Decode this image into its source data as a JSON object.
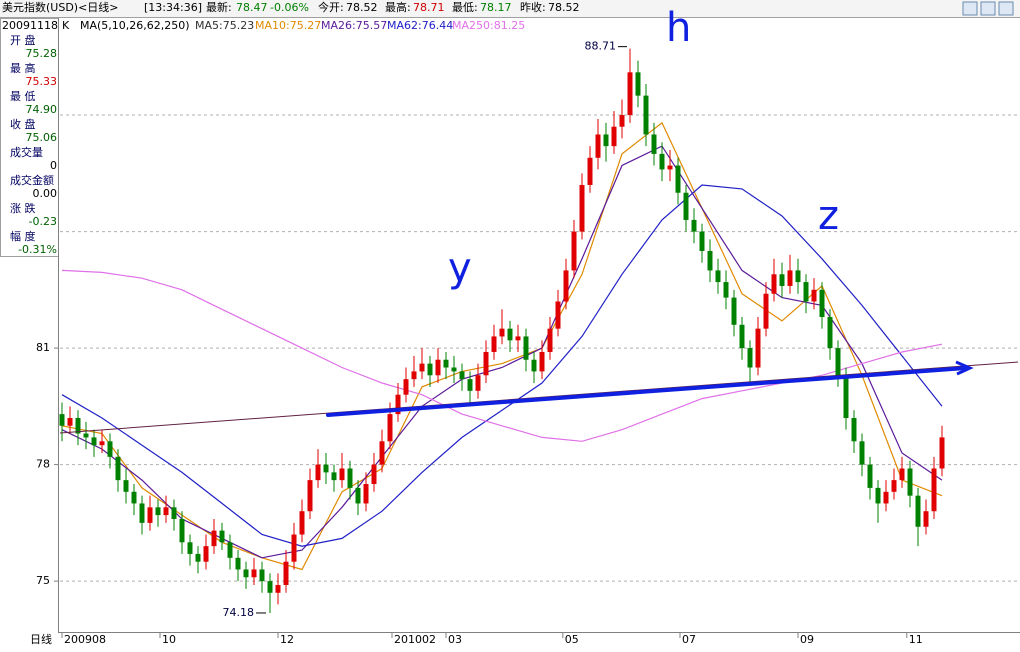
{
  "header": {
    "title": "美元指数(USD)<日线>",
    "time": "[13:34:36]",
    "latest_label": "最新:",
    "latest": "78.47",
    "change": "-0.06%",
    "open_label": "今开:",
    "open": "78.52",
    "high_label": "最高:",
    "high": "78.71",
    "low_label": "最低:",
    "low": "78.17",
    "prev_label": "昨收:",
    "prev": "78.52"
  },
  "info_panel": {
    "date": "20091118",
    "rows": [
      {
        "label": "开 盘",
        "value": "75.28",
        "color": "#006000"
      },
      {
        "label": "最 高",
        "value": "75.33",
        "color": "#d00000"
      },
      {
        "label": "最 低",
        "value": "74.90",
        "color": "#006000"
      },
      {
        "label": "收 盘",
        "value": "75.06",
        "color": "#006000"
      },
      {
        "label": "成交量",
        "value": "0",
        "color": "#000000"
      },
      {
        "label": "成交金额",
        "value": "0.00",
        "color": "#000000"
      },
      {
        "label": "涨 跌",
        "value": "-0.23",
        "color": "#006000"
      },
      {
        "label": "幅 度",
        "value": "-0.31%",
        "color": "#006000"
      }
    ]
  },
  "chart_data": {
    "type": "candlestick",
    "kline_label": "K",
    "ma_label": "MA(5,10,26,62,250)",
    "period_label": "日线",
    "up_color": "#e00000",
    "down_color": "#008000",
    "xlim": [
      -0.25,
      119.5
    ],
    "ylim": [
      73.69,
      89.19
    ],
    "yticks": [
      75,
      78,
      81
    ],
    "ygrid": [
      75,
      78,
      81,
      84,
      87
    ],
    "xticks": [
      {
        "value": 0,
        "label": "200908"
      },
      {
        "value": 12.25,
        "label": "10"
      },
      {
        "value": 27,
        "label": "12"
      },
      {
        "value": 41.25,
        "label": "201002"
      },
      {
        "value": 48,
        "label": "03"
      },
      {
        "value": 62.6,
        "label": "05"
      },
      {
        "value": 77.25,
        "label": "07"
      },
      {
        "value": 92,
        "label": "09"
      },
      {
        "value": 105.6,
        "label": "11"
      }
    ],
    "annotations": {
      "high_label": "88.71",
      "high_index": 71,
      "high_value": 88.71,
      "low_label": "74.18",
      "low_index": 26,
      "low_value": 74.18,
      "mark_y": "y",
      "mark_h": "h",
      "mark_z": "z"
    },
    "candles": [
      [
        79.3,
        79.6,
        78.6,
        79.0
      ],
      [
        79.0,
        79.5,
        78.8,
        79.2
      ],
      [
        79.2,
        79.4,
        78.5,
        78.8
      ],
      [
        78.8,
        79.1,
        78.4,
        78.7
      ],
      [
        78.7,
        78.9,
        78.2,
        78.5
      ],
      [
        78.5,
        78.9,
        78.3,
        78.6
      ],
      [
        78.6,
        78.8,
        77.9,
        78.2
      ],
      [
        78.2,
        78.4,
        77.3,
        77.6
      ],
      [
        77.6,
        77.9,
        77.0,
        77.3
      ],
      [
        77.3,
        77.5,
        76.7,
        77.0
      ],
      [
        77.0,
        77.2,
        76.2,
        76.5
      ],
      [
        76.5,
        77.2,
        76.3,
        76.9
      ],
      [
        76.9,
        77.1,
        76.4,
        76.7
      ],
      [
        76.7,
        77.2,
        76.5,
        76.9
      ],
      [
        76.9,
        77.1,
        76.3,
        76.6
      ],
      [
        76.6,
        76.8,
        75.7,
        76.0
      ],
      [
        76.0,
        76.2,
        75.4,
        75.7
      ],
      [
        75.7,
        75.9,
        75.2,
        75.5
      ],
      [
        75.5,
        76.2,
        75.3,
        75.9
      ],
      [
        75.9,
        76.6,
        75.7,
        76.3
      ],
      [
        76.3,
        76.5,
        75.8,
        76.0
      ],
      [
        76.0,
        76.2,
        75.3,
        75.6
      ],
      [
        75.6,
        75.8,
        75.0,
        75.3
      ],
      [
        75.3,
        75.5,
        74.8,
        75.1
      ],
      [
        75.1,
        75.6,
        74.9,
        75.3
      ],
      [
        75.3,
        75.5,
        74.7,
        75.0
      ],
      [
        75.0,
        75.2,
        74.18,
        74.7
      ],
      [
        74.7,
        75.2,
        74.4,
        74.9
      ],
      [
        74.9,
        75.8,
        74.7,
        75.5
      ],
      [
        75.5,
        76.5,
        75.3,
        76.2
      ],
      [
        76.2,
        77.1,
        76.0,
        76.8
      ],
      [
        76.8,
        77.9,
        76.6,
        77.6
      ],
      [
        77.6,
        78.4,
        77.4,
        78.0
      ],
      [
        78.0,
        78.3,
        77.5,
        77.8
      ],
      [
        77.8,
        78.0,
        77.3,
        77.6
      ],
      [
        77.6,
        78.3,
        77.4,
        77.9
      ],
      [
        77.9,
        78.1,
        77.1,
        77.4
      ],
      [
        77.4,
        77.6,
        76.7,
        77.0
      ],
      [
        77.0,
        77.8,
        76.8,
        77.5
      ],
      [
        77.5,
        78.3,
        77.3,
        78.0
      ],
      [
        78.0,
        78.9,
        77.8,
        78.6
      ],
      [
        78.6,
        79.6,
        78.4,
        79.3
      ],
      [
        79.3,
        80.1,
        79.1,
        79.8
      ],
      [
        79.8,
        80.5,
        79.6,
        80.2
      ],
      [
        80.2,
        80.8,
        80.0,
        80.4
      ],
      [
        80.4,
        81.0,
        80.2,
        80.6
      ],
      [
        80.6,
        80.8,
        80.0,
        80.3
      ],
      [
        80.3,
        81.0,
        80.1,
        80.7
      ],
      [
        80.7,
        80.9,
        80.2,
        80.5
      ],
      [
        80.5,
        80.8,
        80.1,
        80.4
      ],
      [
        80.4,
        80.6,
        79.9,
        80.2
      ],
      [
        80.2,
        80.4,
        79.6,
        79.9
      ],
      [
        79.9,
        80.6,
        79.7,
        80.3
      ],
      [
        80.3,
        81.2,
        80.1,
        80.9
      ],
      [
        80.9,
        81.6,
        80.7,
        81.3
      ],
      [
        81.3,
        82.0,
        81.1,
        81.5
      ],
      [
        81.5,
        81.7,
        80.9,
        81.2
      ],
      [
        81.2,
        81.6,
        80.9,
        81.3
      ],
      [
        81.3,
        81.5,
        80.4,
        80.7
      ],
      [
        80.7,
        80.9,
        80.1,
        80.4
      ],
      [
        80.4,
        81.2,
        80.2,
        80.9
      ],
      [
        80.9,
        81.8,
        80.7,
        81.5
      ],
      [
        81.5,
        82.5,
        81.3,
        82.2
      ],
      [
        82.2,
        83.3,
        82.0,
        83.0
      ],
      [
        83.0,
        84.3,
        82.8,
        84.0
      ],
      [
        84.0,
        85.5,
        83.8,
        85.2
      ],
      [
        85.2,
        86.2,
        85.0,
        85.9
      ],
      [
        85.9,
        86.9,
        85.6,
        86.5
      ],
      [
        86.5,
        86.8,
        85.8,
        86.2
      ],
      [
        86.2,
        87.1,
        86.0,
        86.7
      ],
      [
        86.7,
        87.4,
        86.4,
        87.0
      ],
      [
        87.0,
        88.71,
        86.8,
        88.1
      ],
      [
        88.1,
        88.4,
        87.2,
        87.5
      ],
      [
        87.5,
        87.8,
        86.2,
        86.5
      ],
      [
        86.5,
        86.8,
        85.7,
        86.0
      ],
      [
        86.0,
        86.3,
        85.3,
        85.6
      ],
      [
        85.6,
        86.1,
        85.3,
        85.7
      ],
      [
        85.7,
        85.9,
        84.7,
        85.0
      ],
      [
        85.0,
        85.2,
        84.0,
        84.3
      ],
      [
        84.3,
        84.6,
        83.7,
        84.0
      ],
      [
        84.0,
        84.2,
        83.2,
        83.5
      ],
      [
        83.5,
        83.8,
        82.7,
        83.0
      ],
      [
        83.0,
        83.3,
        82.4,
        82.7
      ],
      [
        82.7,
        83.0,
        82.0,
        82.3
      ],
      [
        82.3,
        82.5,
        81.3,
        81.6
      ],
      [
        81.6,
        81.8,
        80.7,
        81.0
      ],
      [
        81.0,
        81.2,
        80.1,
        80.5
      ],
      [
        80.5,
        81.8,
        80.3,
        81.5
      ],
      [
        81.5,
        82.7,
        81.3,
        82.4
      ],
      [
        82.4,
        83.3,
        82.2,
        82.9
      ],
      [
        82.9,
        83.2,
        82.3,
        82.6
      ],
      [
        82.6,
        83.4,
        82.4,
        83.0
      ],
      [
        83.0,
        83.3,
        82.4,
        82.7
      ],
      [
        82.7,
        82.9,
        81.9,
        82.2
      ],
      [
        82.2,
        82.8,
        82.0,
        82.5
      ],
      [
        82.5,
        82.7,
        81.5,
        81.8
      ],
      [
        81.8,
        82.0,
        80.7,
        81.0
      ],
      [
        81.0,
        81.2,
        80.0,
        80.3
      ],
      [
        80.3,
        80.5,
        78.9,
        79.2
      ],
      [
        79.2,
        79.4,
        78.3,
        78.6
      ],
      [
        78.6,
        78.8,
        77.7,
        78.0
      ],
      [
        78.0,
        78.2,
        77.1,
        77.4
      ],
      [
        77.4,
        77.6,
        76.5,
        77.0
      ],
      [
        77.0,
        77.6,
        76.8,
        77.3
      ],
      [
        77.3,
        77.9,
        77.1,
        77.6
      ],
      [
        77.6,
        78.2,
        77.4,
        77.9
      ],
      [
        77.9,
        78.1,
        76.9,
        77.2
      ],
      [
        77.2,
        77.4,
        75.9,
        76.4
      ],
      [
        76.4,
        77.1,
        76.2,
        76.8
      ],
      [
        76.8,
        78.2,
        76.6,
        77.9
      ],
      [
        77.9,
        79.0,
        77.7,
        78.7
      ]
    ],
    "ma_x": [
      0,
      5,
      10,
      15,
      20,
      25,
      30,
      35,
      40,
      45,
      50,
      55,
      60,
      65,
      70,
      75,
      80,
      85,
      90,
      95,
      100,
      105,
      110
    ],
    "series": [
      {
        "legend": "MA5:75.23",
        "color": "#303030"
      },
      {
        "legend": "MA10:75.27",
        "color": "#e08a00",
        "values": [
          79.0,
          78.8,
          77.4,
          76.7,
          76.0,
          75.6,
          75.3,
          77.3,
          77.9,
          80.0,
          80.4,
          80.6,
          81.0,
          82.9,
          86.0,
          86.8,
          84.6,
          82.4,
          81.7,
          82.6,
          80.3,
          77.6,
          77.2
        ]
      },
      {
        "legend": "MA26:75.57",
        "color": "#5a1a9a",
        "values": [
          78.9,
          78.4,
          77.6,
          76.6,
          76.1,
          75.6,
          75.8,
          76.9,
          78.2,
          79.5,
          80.2,
          80.5,
          81.0,
          83.3,
          85.7,
          86.2,
          84.6,
          83.0,
          82.3,
          82.1,
          80.6,
          78.3,
          77.6
        ]
      },
      {
        "legend": "MA62:76.44",
        "color": "#2020c8",
        "values": [
          79.8,
          79.2,
          78.5,
          77.8,
          77.0,
          76.2,
          75.9,
          76.1,
          76.8,
          77.8,
          78.7,
          79.4,
          80.1,
          81.3,
          82.9,
          84.3,
          85.2,
          85.1,
          84.4,
          83.3,
          82.1,
          80.8,
          79.5
        ]
      },
      {
        "legend": "MA250:81.25",
        "color": "#e070e8",
        "values": [
          83.0,
          82.95,
          82.8,
          82.5,
          82.0,
          81.5,
          81.0,
          80.5,
          80.1,
          79.8,
          79.3,
          79.0,
          78.7,
          78.6,
          78.9,
          79.3,
          79.7,
          79.9,
          80.1,
          80.3,
          80.6,
          80.9,
          81.1
        ]
      }
    ]
  }
}
